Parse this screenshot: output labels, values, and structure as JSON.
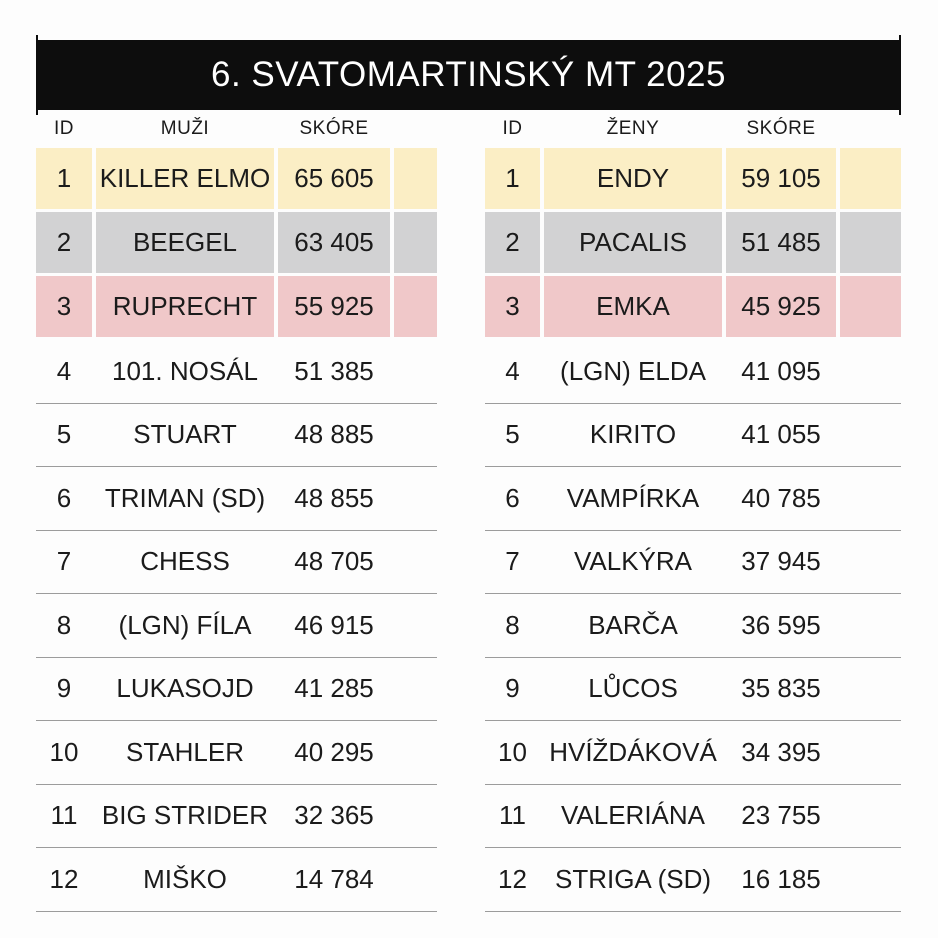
{
  "banner": {
    "title": "6. SVATOMARTINSKÝ MT 2025"
  },
  "tables": [
    {
      "headers": {
        "id": "ID",
        "name": "MUŽI",
        "score": "SKÓRE"
      },
      "rows": [
        {
          "id": "1",
          "name": "KILLER ELMO",
          "score": "65 605"
        },
        {
          "id": "2",
          "name": "BEEGEL",
          "score": "63 405"
        },
        {
          "id": "3",
          "name": "RUPRECHT",
          "score": "55 925"
        },
        {
          "id": "4",
          "name": "101. NOSÁL",
          "score": "51 385"
        },
        {
          "id": "5",
          "name": "STUART",
          "score": "48 885"
        },
        {
          "id": "6",
          "name": "TRIMAN (SD)",
          "score": "48 855"
        },
        {
          "id": "7",
          "name": "CHESS",
          "score": "48 705"
        },
        {
          "id": "8",
          "name": "(LGN) FÍLA",
          "score": "46 915"
        },
        {
          "id": "9",
          "name": "LUKASOJD",
          "score": "41 285"
        },
        {
          "id": "10",
          "name": "STAHLER",
          "score": "40 295"
        },
        {
          "id": "11",
          "name": "BIG STRIDER",
          "score": "32 365"
        },
        {
          "id": "12",
          "name": "MIŠKO",
          "score": "14 784"
        }
      ]
    },
    {
      "headers": {
        "id": "ID",
        "name": "ŽENY",
        "score": "SKÓRE"
      },
      "rows": [
        {
          "id": "1",
          "name": "ENDY",
          "score": "59 105"
        },
        {
          "id": "2",
          "name": "PACALIS",
          "score": "51 485"
        },
        {
          "id": "3",
          "name": "EMKA",
          "score": "45 925"
        },
        {
          "id": "4",
          "name": "(LGN) ELDA",
          "score": "41 095"
        },
        {
          "id": "5",
          "name": "KIRITO",
          "score": "41 055"
        },
        {
          "id": "6",
          "name": "VAMPÍRKA",
          "score": "40 785"
        },
        {
          "id": "7",
          "name": "VALKÝRA",
          "score": "37 945"
        },
        {
          "id": "8",
          "name": "BARČA",
          "score": "36 595"
        },
        {
          "id": "9",
          "name": "LŮCOS",
          "score": "35 835"
        },
        {
          "id": "10",
          "name": "HVÍŽDÁKOVÁ",
          "score": "34 395"
        },
        {
          "id": "11",
          "name": "VALERIÁNA",
          "score": "23 755"
        },
        {
          "id": "12",
          "name": "STRIGA (SD)",
          "score": "16 185"
        }
      ]
    }
  ],
  "colors": {
    "banner_bg": "#0D0D0D",
    "banner_text": "#FFFFFF",
    "rank1_bg": "#FBEEC5",
    "rank2_bg": "#D2D2D3",
    "rank3_bg": "#F0C8C9",
    "divider": "#9C9C9C",
    "text": "#1B1B1B",
    "page_bg": "#FDFDFD"
  }
}
